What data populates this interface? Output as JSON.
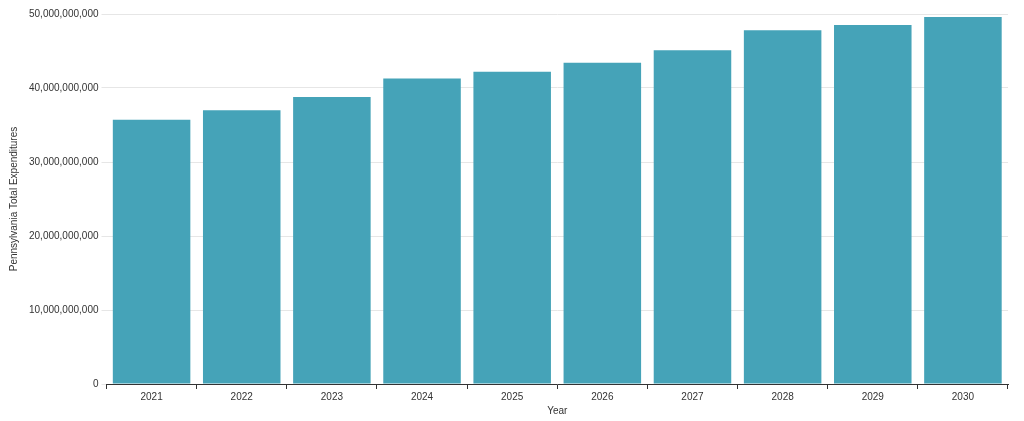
{
  "chart_data": {
    "type": "bar",
    "x_label": "Year",
    "y_label": "Pennsylvania Total Expenditures",
    "categories": [
      "2021",
      "2022",
      "2023",
      "2024",
      "2025",
      "2026",
      "2027",
      "2028",
      "2029",
      "2030"
    ],
    "values": [
      35700000000,
      37000000000,
      38800000000,
      41300000000,
      42200000000,
      43400000000,
      45100000000,
      47800000000,
      48500000000,
      49600000000
    ],
    "color": "#45a3b8",
    "ylim": [
      0,
      50000000000
    ],
    "yticks": [
      {
        "value": 0,
        "label": "0"
      },
      {
        "value": 10000000000,
        "label": "10,000,000,000"
      },
      {
        "value": 20000000000,
        "label": "20,000,000,000"
      },
      {
        "value": 30000000000,
        "label": "30,000,000,000"
      },
      {
        "value": 40000000000,
        "label": "40,000,000,000"
      },
      {
        "value": 50000000000,
        "label": "50,000,000,000"
      }
    ],
    "grid": true
  }
}
